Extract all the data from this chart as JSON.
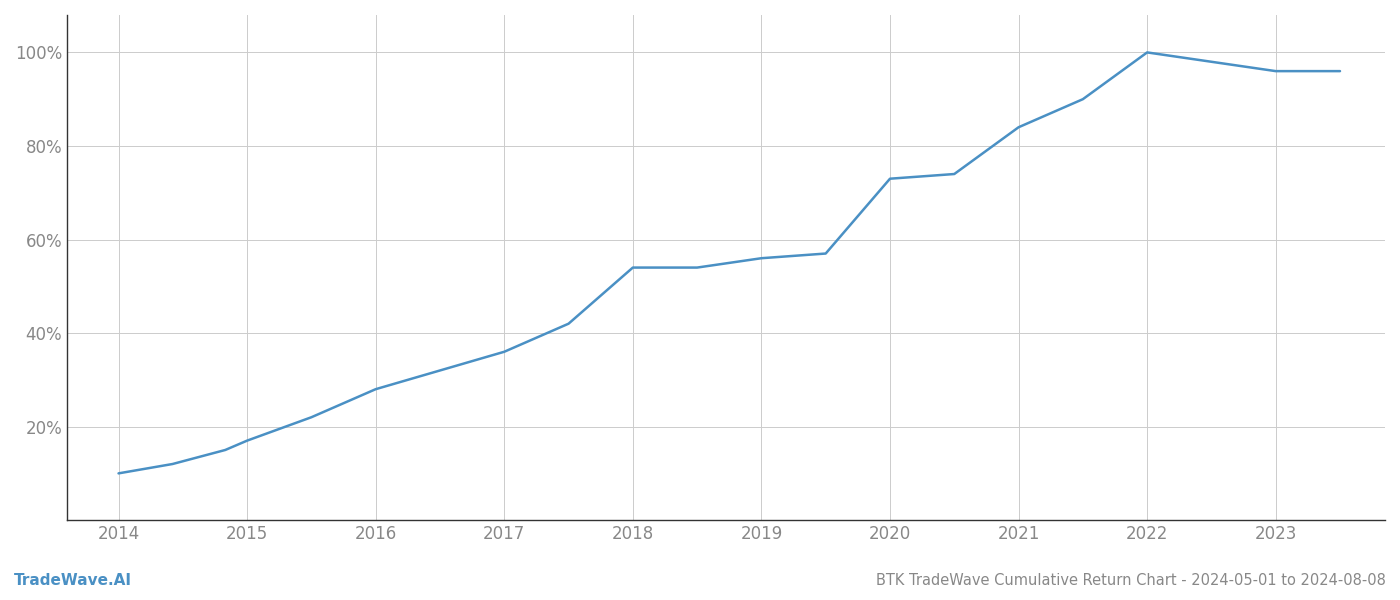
{
  "title": "BTK TradeWave Cumulative Return Chart - 2024-05-01 to 2024-08-08",
  "watermark": "TradeWave.AI",
  "line_color": "#4a90c4",
  "background_color": "#ffffff",
  "grid_color": "#cccccc",
  "x_years": [
    2014.0,
    2014.42,
    2014.83,
    2015.0,
    2015.5,
    2016.0,
    2016.5,
    2017.0,
    2017.5,
    2018.0,
    2018.5,
    2019.0,
    2019.5,
    2020.0,
    2020.5,
    2021.0,
    2021.5,
    2022.0,
    2022.5,
    2023.0,
    2023.5
  ],
  "y_values": [
    0.1,
    0.12,
    0.15,
    0.17,
    0.22,
    0.28,
    0.32,
    0.36,
    0.42,
    0.54,
    0.54,
    0.56,
    0.57,
    0.73,
    0.74,
    0.84,
    0.9,
    1.0,
    0.98,
    0.96,
    0.96
  ],
  "x_ticks": [
    2014,
    2015,
    2016,
    2017,
    2018,
    2019,
    2020,
    2021,
    2022,
    2023
  ],
  "y_ticks": [
    0.2,
    0.4,
    0.6,
    0.8,
    1.0
  ],
  "y_tick_labels": [
    "20%",
    "40%",
    "60%",
    "80%",
    "100%"
  ],
  "xlim": [
    2013.6,
    2023.85
  ],
  "ylim": [
    0.0,
    1.08
  ],
  "title_fontsize": 10.5,
  "tick_fontsize": 12,
  "watermark_fontsize": 11,
  "line_width": 1.8,
  "tick_color": "#888888",
  "spine_color": "#333333",
  "watermark_color": "#4a90c4"
}
